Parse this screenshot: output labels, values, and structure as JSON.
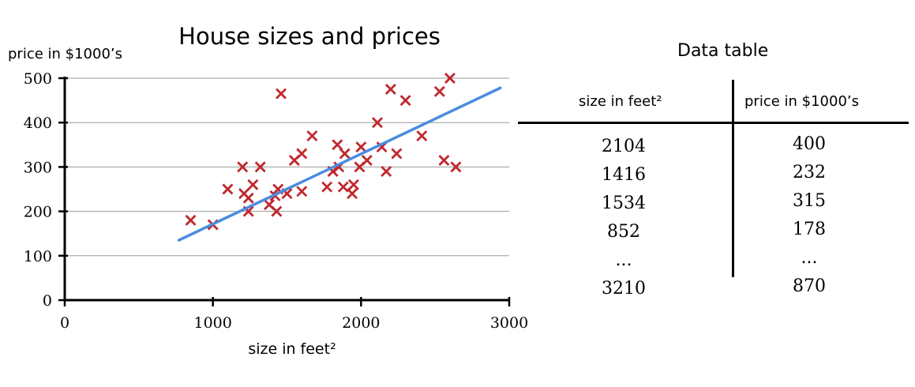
{
  "chart_data": {
    "type": "scatter",
    "title": "House sizes and prices",
    "xlabel": "size in feet²",
    "ylabel": "price in $1000’s",
    "xlim": [
      0,
      3000
    ],
    "ylim": [
      0,
      500
    ],
    "x_ticks": [
      "0",
      "1000",
      "2000",
      "3000"
    ],
    "y_ticks": [
      "0",
      "100",
      "200",
      "300",
      "400",
      "500"
    ],
    "grid": "horizontal",
    "marker": "x",
    "marker_color": "#c0282d",
    "fit_line": {
      "x": [
        770,
        2940
      ],
      "y": [
        135,
        478
      ],
      "color": "#4a8ce0"
    },
    "points": [
      [
        850,
        180
      ],
      [
        1000,
        170
      ],
      [
        1100,
        250
      ],
      [
        1200,
        300
      ],
      [
        1210,
        240
      ],
      [
        1240,
        230
      ],
      [
        1240,
        200
      ],
      [
        1270,
        260
      ],
      [
        1320,
        300
      ],
      [
        1380,
        215
      ],
      [
        1420,
        235
      ],
      [
        1430,
        200
      ],
      [
        1440,
        250
      ],
      [
        1460,
        465
      ],
      [
        1500,
        240
      ],
      [
        1550,
        315
      ],
      [
        1600,
        330
      ],
      [
        1600,
        245
      ],
      [
        1670,
        370
      ],
      [
        1770,
        255
      ],
      [
        1810,
        290
      ],
      [
        1840,
        350
      ],
      [
        1850,
        300
      ],
      [
        1880,
        255
      ],
      [
        1890,
        330
      ],
      [
        1940,
        240
      ],
      [
        1950,
        260
      ],
      [
        1990,
        300
      ],
      [
        2000,
        345
      ],
      [
        2040,
        315
      ],
      [
        2110,
        400
      ],
      [
        2140,
        345
      ],
      [
        2170,
        290
      ],
      [
        2200,
        475
      ],
      [
        2240,
        330
      ],
      [
        2300,
        450
      ],
      [
        2410,
        370
      ],
      [
        2530,
        470
      ],
      [
        2560,
        315
      ],
      [
        2600,
        500
      ],
      [
        2640,
        300
      ]
    ]
  },
  "table": {
    "title": "Data table",
    "headers": [
      "size in feet²",
      "price in $1000’s"
    ],
    "sizes": [
      "2104",
      "1416",
      "1534",
      "852",
      "...",
      "3210"
    ],
    "prices": [
      "400",
      "232",
      "315",
      "178",
      "...",
      "870"
    ]
  }
}
